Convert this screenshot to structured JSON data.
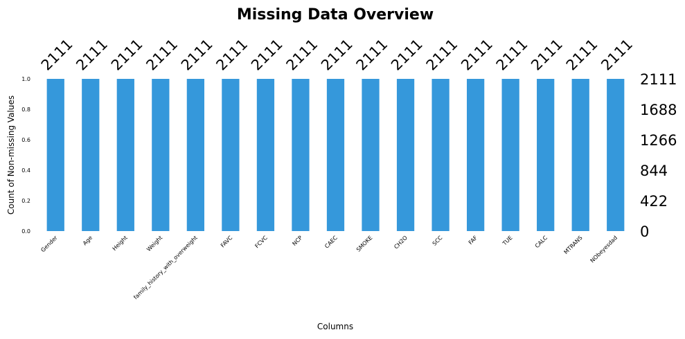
{
  "chart_data": {
    "type": "bar",
    "title": "Missing Data Overview",
    "xlabel": "Columns",
    "ylabel": "Count of Non-missing Values",
    "categories": [
      "Gender",
      "Age",
      "Height",
      "Weight",
      "family_history_with_overweight",
      "FAVC",
      "FCVC",
      "NCP",
      "CAEC",
      "SMOKE",
      "CH2O",
      "SCC",
      "FAF",
      "TUE",
      "CALC",
      "MTRANS",
      "NObeyesdad"
    ],
    "values": [
      2111,
      2111,
      2111,
      2111,
      2111,
      2111,
      2111,
      2111,
      2111,
      2111,
      2111,
      2111,
      2111,
      2111,
      2111,
      2111,
      2111
    ],
    "top_labels": [
      "2111",
      "2111",
      "2111",
      "2111",
      "2111",
      "2111",
      "2111",
      "2111",
      "2111",
      "2111",
      "2111",
      "2111",
      "2111",
      "2111",
      "2111",
      "2111",
      "2111"
    ],
    "ylim": [
      0,
      1.0
    ],
    "left_ticks": [
      "0.0",
      "0.2",
      "0.4",
      "0.6",
      "0.8",
      "1.0"
    ],
    "right_ticks": [
      "0",
      "422",
      "844",
      "1266",
      "1688",
      "2111"
    ],
    "total": 2111,
    "bar_color": "#3598db",
    "grid": false
  }
}
